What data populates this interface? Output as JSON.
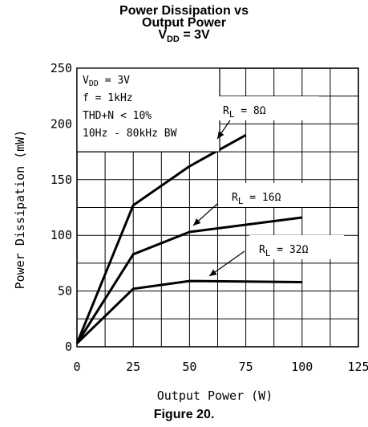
{
  "title": {
    "line1": "Power Dissipation vs",
    "line2": "Output Power",
    "line3_main": "V",
    "line3_sub": "DD",
    "line3_rest": " = 3V"
  },
  "figure_caption": "Figure 20.",
  "conditions": {
    "vdd_main": "V",
    "vdd_sub": "DD",
    "vdd_rest": " = 3V",
    "freq": "f = 1kHz",
    "thd": "THD+N < 10%",
    "bw": "10Hz - 80kHz BW"
  },
  "chart_data": {
    "type": "line",
    "xlabel": "Output Power (W)",
    "ylabel": "Power Dissipation (mW)",
    "xlim": [
      0,
      125
    ],
    "ylim": [
      0,
      250
    ],
    "xticks": [
      0,
      25,
      50,
      75,
      100,
      125
    ],
    "yticks": [
      0,
      50,
      100,
      150,
      200,
      250
    ],
    "grid": true,
    "series": [
      {
        "name_main": "R",
        "name_sub": "L",
        "name_rest": " = 8Ω",
        "x": [
          0,
          25,
          50,
          75
        ],
        "y": [
          3,
          127,
          162,
          190
        ]
      },
      {
        "name_main": "R",
        "name_sub": "L",
        "name_rest": " = 16Ω",
        "x": [
          0,
          25,
          50,
          100
        ],
        "y": [
          3,
          83,
          103,
          116
        ]
      },
      {
        "name_main": "R",
        "name_sub": "L",
        "name_rest": " = 32Ω",
        "x": [
          0,
          25,
          50,
          100
        ],
        "y": [
          3,
          52,
          59,
          58
        ]
      }
    ]
  }
}
